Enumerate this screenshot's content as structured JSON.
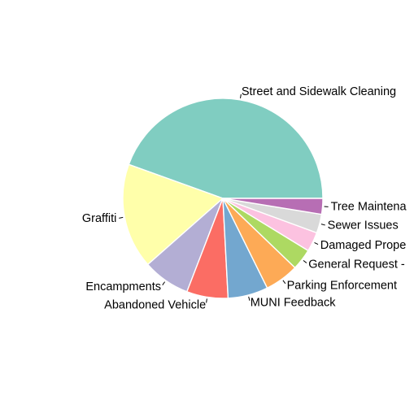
{
  "chart_data": {
    "type": "pie",
    "categories": [
      "Street and Sidewalk Cleaning",
      "Graffiti",
      "Encampments",
      "Abandoned Vehicle",
      "MUNI Feedback",
      "Parking Enforcement",
      "General Request - ",
      "Damaged Prope",
      "Sewer Issues",
      "Tree Maintena"
    ],
    "values": [
      45.3,
      17.3,
      7.8,
      6.8,
      6.6,
      5.6,
      3.5,
      3.2,
      3.1,
      2.6
    ],
    "colors": [
      "#80cdc1",
      "#ffffaa",
      "#b3aed4",
      "#fb6d64",
      "#73a7cf",
      "#fdaa56",
      "#add962",
      "#fcc2e0",
      "#d9d9d9",
      "#b76eb4"
    ],
    "start_angle_deg": 0,
    "direction": "counterclockwise",
    "legend": "none",
    "title": ""
  }
}
